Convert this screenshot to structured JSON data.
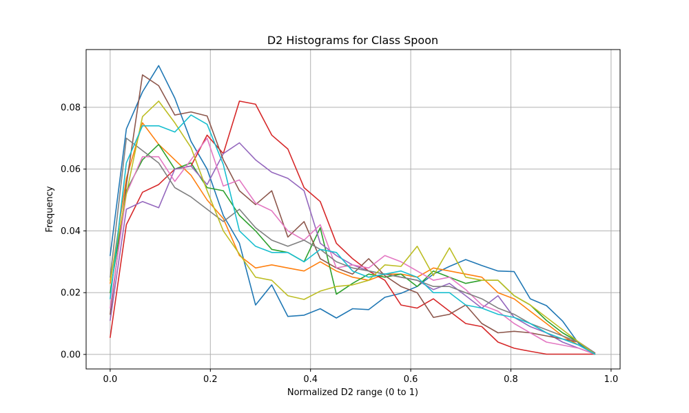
{
  "chart_data": {
    "type": "line",
    "title": "D2 Histograms for Class Spoon",
    "xlabel": "Normalized D2 range (0 to 1)",
    "ylabel": "Frequency",
    "xlim": [
      -0.048,
      1.018
    ],
    "ylim": [
      -0.0047,
      0.0987
    ],
    "xticks": [
      {
        "value": 0.0,
        "label": "0.0"
      },
      {
        "value": 0.2,
        "label": "0.2"
      },
      {
        "value": 0.4,
        "label": "0.4"
      },
      {
        "value": 0.6,
        "label": "0.6"
      },
      {
        "value": 0.8,
        "label": "0.8"
      },
      {
        "value": 1.0,
        "label": "1.0"
      }
    ],
    "yticks": [
      {
        "value": 0.0,
        "label": "0.00"
      },
      {
        "value": 0.02,
        "label": "0.02"
      },
      {
        "value": 0.04,
        "label": "0.04"
      },
      {
        "value": 0.06,
        "label": "0.06"
      },
      {
        "value": 0.08,
        "label": "0.08"
      }
    ],
    "grid": true,
    "x": [
      0.0,
      0.0323,
      0.0645,
      0.0968,
      0.129,
      0.1613,
      0.1935,
      0.2258,
      0.2581,
      0.2903,
      0.3226,
      0.3548,
      0.3871,
      0.4194,
      0.4516,
      0.4839,
      0.5161,
      0.5484,
      0.5806,
      0.6129,
      0.6452,
      0.6774,
      0.7097,
      0.7419,
      0.7742,
      0.8065,
      0.8387,
      0.871,
      0.9032,
      0.9355,
      0.9677
    ],
    "series": [
      {
        "color": "#1f77b4",
        "values": [
          0.032,
          0.073,
          0.085,
          0.0935,
          0.083,
          0.069,
          0.06,
          0.045,
          0.036,
          0.016,
          0.0225,
          0.0123,
          0.0127,
          0.0148,
          0.0118,
          0.0148,
          0.0145,
          0.0185,
          0.0198,
          0.022,
          0.026,
          0.0285,
          0.0307,
          0.0288,
          0.027,
          0.0268,
          0.018,
          0.0158,
          0.0108,
          0.0035,
          0.0001
        ]
      },
      {
        "color": "#ff7f0e",
        "values": [
          0.023,
          0.057,
          0.075,
          0.068,
          0.063,
          0.058,
          0.05,
          0.044,
          0.032,
          0.028,
          0.029,
          0.028,
          0.027,
          0.03,
          0.027,
          0.025,
          0.024,
          0.026,
          0.026,
          0.025,
          0.028,
          0.027,
          0.026,
          0.025,
          0.02,
          0.018,
          0.014,
          0.01,
          0.006,
          0.003,
          0.0001
        ]
      },
      {
        "color": "#2ca02c",
        "values": [
          0.02,
          0.053,
          0.063,
          0.068,
          0.06,
          0.062,
          0.054,
          0.053,
          0.045,
          0.04,
          0.034,
          0.033,
          0.03,
          0.041,
          0.0195,
          0.023,
          0.026,
          0.025,
          0.026,
          0.022,
          0.027,
          0.025,
          0.023,
          0.024,
          0.024,
          0.019,
          0.016,
          0.011,
          0.007,
          0.004,
          0.0001
        ]
      },
      {
        "color": "#d62728",
        "values": [
          0.0055,
          0.042,
          0.0525,
          0.055,
          0.06,
          0.061,
          0.071,
          0.065,
          0.082,
          0.081,
          0.071,
          0.0665,
          0.054,
          0.0495,
          0.036,
          0.031,
          0.027,
          0.024,
          0.016,
          0.015,
          0.018,
          0.014,
          0.01,
          0.009,
          0.004,
          0.002,
          0.001,
          0.0001,
          0.0001,
          0.0001,
          0.0001
        ]
      },
      {
        "color": "#9467bd",
        "values": [
          0.011,
          0.047,
          0.0495,
          0.0475,
          0.06,
          0.061,
          0.055,
          0.065,
          0.0685,
          0.063,
          0.059,
          0.057,
          0.053,
          0.036,
          0.032,
          0.029,
          0.027,
          0.026,
          0.025,
          0.024,
          0.021,
          0.023,
          0.019,
          0.015,
          0.019,
          0.012,
          0.009,
          0.007,
          0.004,
          0.002,
          0.0001
        ]
      },
      {
        "color": "#8c564b",
        "values": [
          0.013,
          0.055,
          0.0905,
          0.087,
          0.0775,
          0.0785,
          0.0772,
          0.063,
          0.053,
          0.0485,
          0.053,
          0.038,
          0.043,
          0.031,
          0.028,
          0.026,
          0.031,
          0.0255,
          0.022,
          0.02,
          0.012,
          0.013,
          0.016,
          0.01,
          0.007,
          0.0075,
          0.007,
          0.006,
          0.005,
          0.004,
          0.0005
        ]
      },
      {
        "color": "#e377c2",
        "values": [
          0.015,
          0.052,
          0.064,
          0.064,
          0.056,
          0.063,
          0.07,
          0.0545,
          0.0565,
          0.049,
          0.0465,
          0.04,
          0.037,
          0.042,
          0.028,
          0.029,
          0.028,
          0.032,
          0.03,
          0.027,
          0.024,
          0.025,
          0.021,
          0.016,
          0.014,
          0.01,
          0.007,
          0.004,
          0.003,
          0.002,
          0.0001
        ]
      },
      {
        "color": "#7f7f7f",
        "values": [
          0.025,
          0.07,
          0.066,
          0.062,
          0.054,
          0.051,
          0.047,
          0.043,
          0.047,
          0.041,
          0.037,
          0.035,
          0.037,
          0.034,
          0.03,
          0.028,
          0.027,
          0.026,
          0.025,
          0.024,
          0.022,
          0.022,
          0.02,
          0.018,
          0.015,
          0.013,
          0.01,
          0.008,
          0.006,
          0.004,
          0.0005
        ]
      },
      {
        "color": "#bcbd22",
        "values": [
          0.024,
          0.052,
          0.077,
          0.082,
          0.075,
          0.067,
          0.053,
          0.04,
          0.0325,
          0.025,
          0.024,
          0.019,
          0.0178,
          0.0205,
          0.022,
          0.0225,
          0.024,
          0.029,
          0.0285,
          0.035,
          0.0255,
          0.0345,
          0.025,
          0.024,
          0.024,
          0.019,
          0.016,
          0.012,
          0.008,
          0.004,
          0.0001
        ]
      },
      {
        "color": "#17becf",
        "values": [
          0.018,
          0.062,
          0.074,
          0.074,
          0.072,
          0.0775,
          0.0745,
          0.0615,
          0.04,
          0.035,
          0.033,
          0.033,
          0.03,
          0.034,
          0.033,
          0.027,
          0.025,
          0.026,
          0.027,
          0.025,
          0.02,
          0.02,
          0.016,
          0.015,
          0.013,
          0.012,
          0.01,
          0.007,
          0.005,
          0.003,
          0.0001
        ]
      }
    ]
  }
}
